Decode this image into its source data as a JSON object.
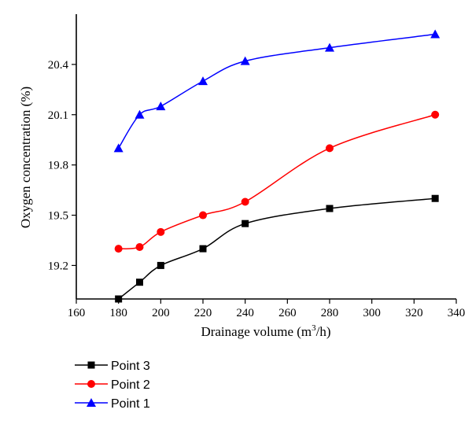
{
  "chart_data": {
    "type": "line",
    "xlabel_main": "Drainage volume (m",
    "xlabel_sup": "3",
    "xlabel_tail": "/h)",
    "ylabel": "Oxygen concentration (%)",
    "xlim": [
      160,
      340
    ],
    "ylim": [
      19.0,
      20.7
    ],
    "x_ticks": [
      "160",
      "180",
      "200",
      "220",
      "240",
      "260",
      "280",
      "300",
      "320",
      "340"
    ],
    "y_ticks": [
      "19.2",
      "19.5",
      "19.8",
      "20.1",
      "20.4"
    ],
    "x": [
      180,
      190,
      200,
      220,
      240,
      280,
      330
    ],
    "series": [
      {
        "name": "Point 3",
        "color": "#000000",
        "marker": "square",
        "values": [
          19.0,
          19.1,
          19.2,
          19.3,
          19.45,
          19.54,
          19.6
        ]
      },
      {
        "name": "Point 2",
        "color": "#ff0000",
        "marker": "circle",
        "values": [
          19.3,
          19.31,
          19.4,
          19.5,
          19.58,
          19.9,
          20.1
        ]
      },
      {
        "name": "Point 1",
        "color": "#0000ff",
        "marker": "triangle",
        "values": [
          19.9,
          20.1,
          20.15,
          20.3,
          20.42,
          20.5,
          20.58
        ]
      }
    ],
    "legend_position": "bottom-left"
  }
}
